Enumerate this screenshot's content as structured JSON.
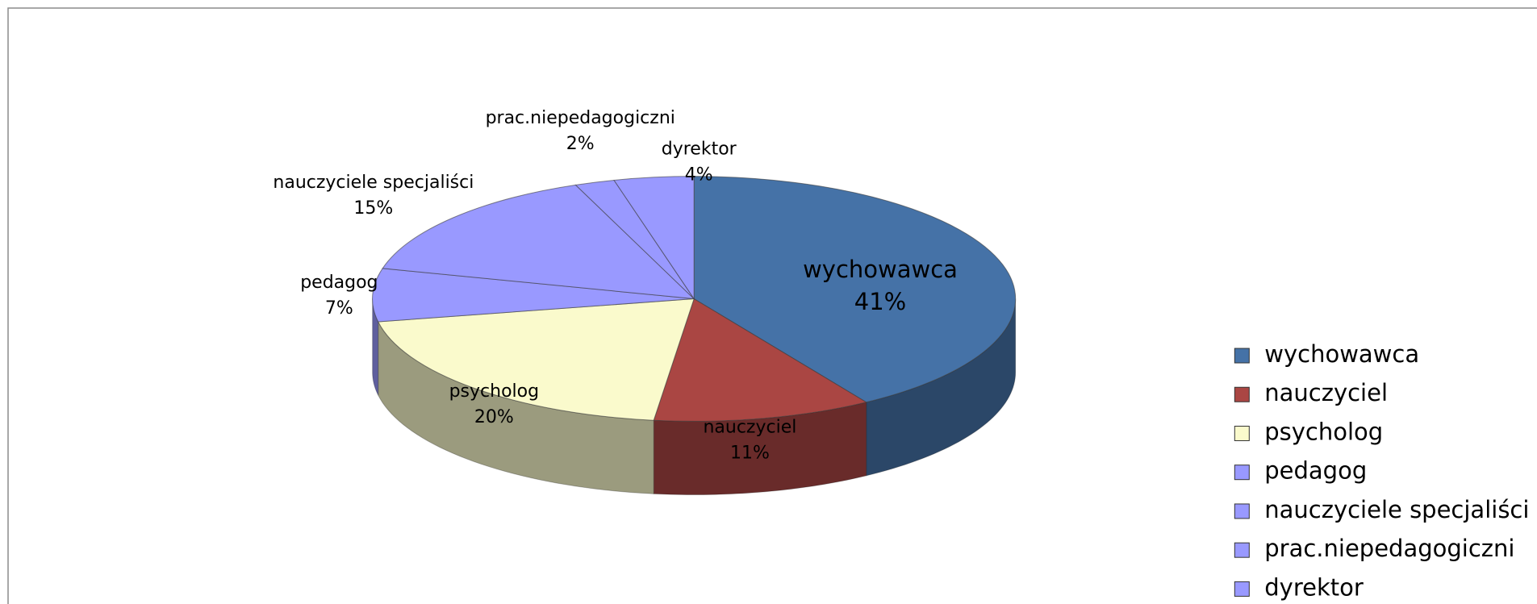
{
  "chart_data": {
    "type": "pie",
    "categories": [
      "wychowawca",
      "nauczyciel",
      "psycholog",
      "pedagog",
      "nauczyciele specjaliści",
      "prac.niepedagogiczni",
      "dyrektor"
    ],
    "values": [
      41,
      11,
      20,
      7,
      15,
      2,
      4
    ],
    "value_labels": [
      "41%",
      "11%",
      "20%",
      "7%",
      "15%",
      "2%",
      "4%"
    ],
    "colors": [
      "#4572a7",
      "#aa4643",
      "#fafacc",
      "#9999ff",
      "#9999ff",
      "#9999ff",
      "#9999ff"
    ],
    "legend": "right"
  }
}
